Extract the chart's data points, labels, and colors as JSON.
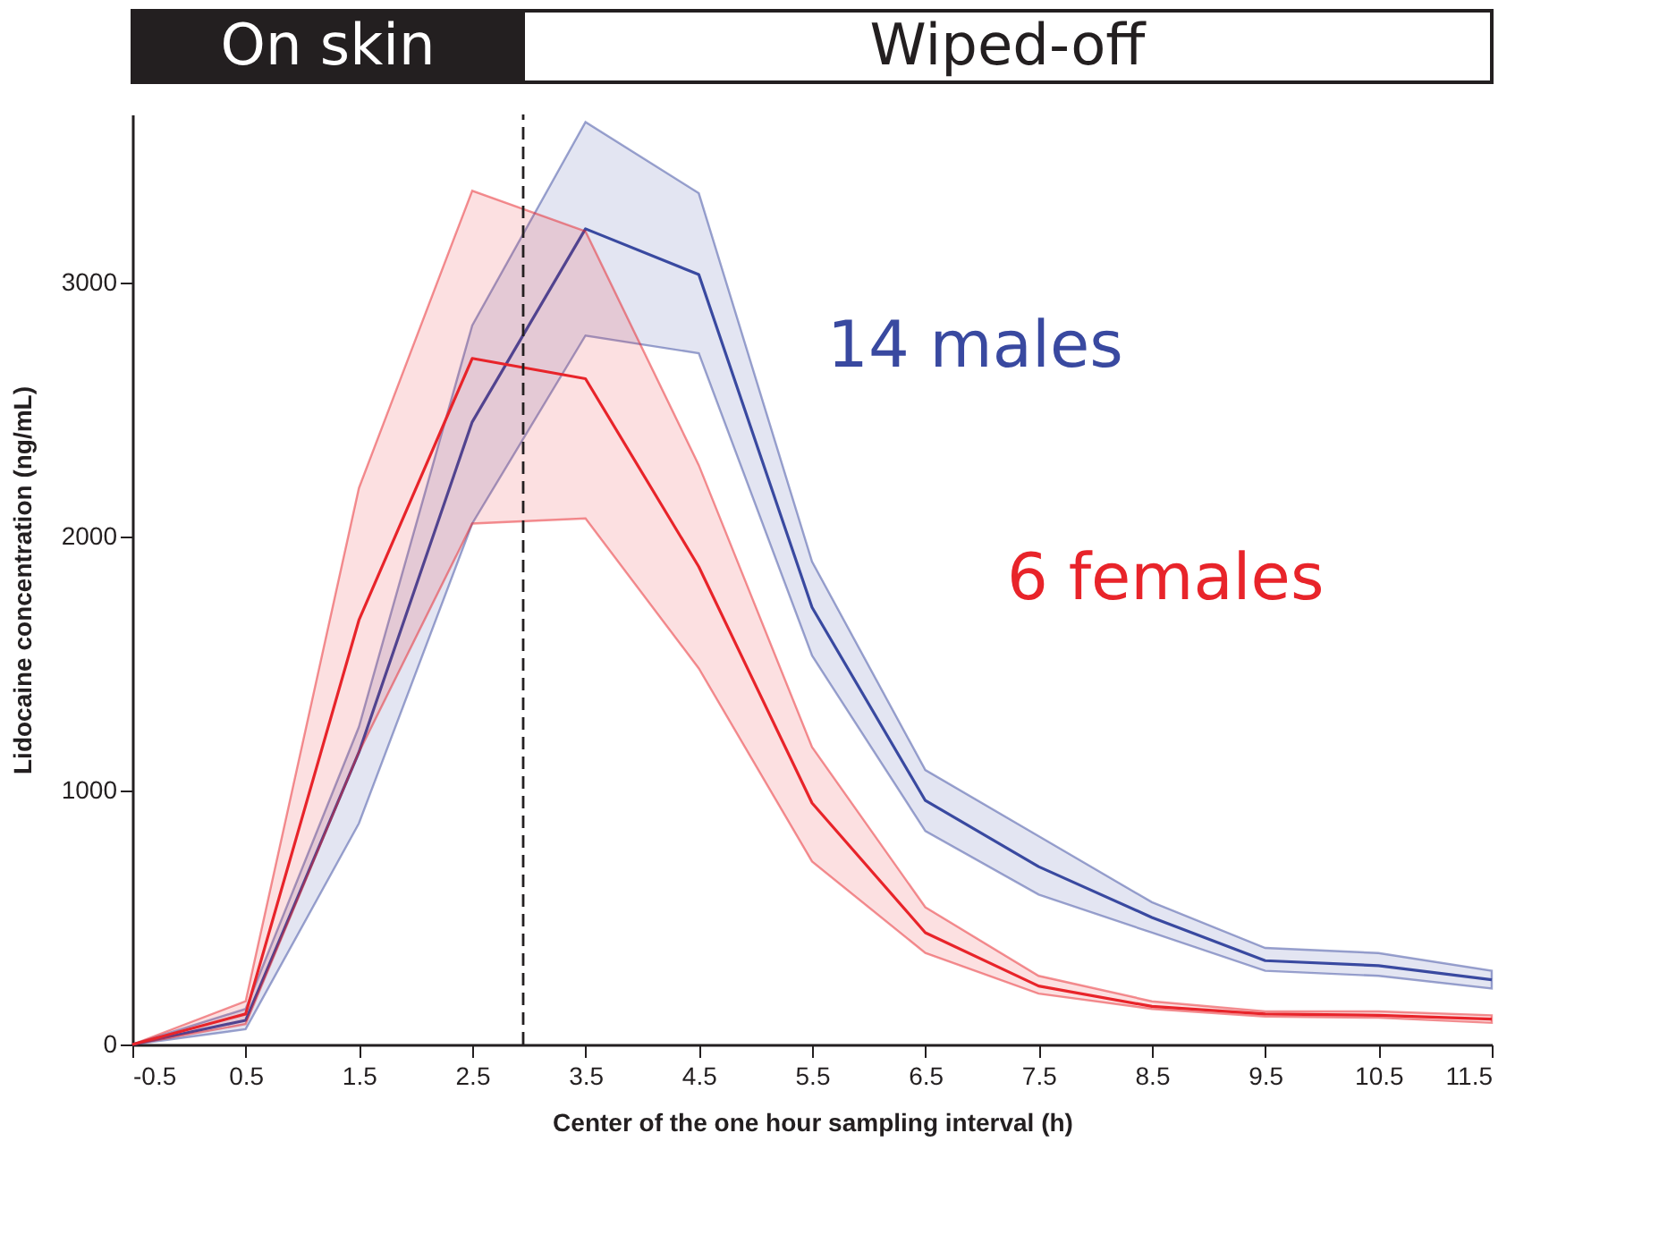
{
  "chart_data": {
    "type": "line",
    "xlabel": "Center of the one hour sampling interval (h)",
    "ylabel": "Lidocaine concentration (ng/mL)",
    "annotations": [
      "On skin",
      "Wiped-off"
    ],
    "x": [
      -0.5,
      0.5,
      1.5,
      2.5,
      3.5,
      4.5,
      5.5,
      6.5,
      7.5,
      8.5,
      9.5,
      10.5,
      11.5
    ],
    "series": [
      {
        "name": "14 males",
        "color": "#3949a0",
        "values": [
          0,
          95,
          1150,
          2450,
          3210,
          3030,
          1720,
          960,
          700,
          500,
          330,
          310,
          255
        ],
        "lower": [
          0,
          60,
          870,
          2050,
          2790,
          2720,
          1530,
          840,
          590,
          440,
          290,
          270,
          220
        ],
        "upper": [
          0,
          140,
          1250,
          2830,
          3630,
          3350,
          1900,
          1080,
          820,
          560,
          380,
          360,
          290
        ]
      },
      {
        "name": "6 females",
        "color": "#e8242a",
        "values": [
          0,
          120,
          1670,
          2700,
          2620,
          1880,
          950,
          440,
          230,
          150,
          120,
          115,
          100
        ],
        "lower": [
          0,
          80,
          1150,
          2050,
          2070,
          1480,
          720,
          360,
          200,
          140,
          110,
          105,
          85
        ],
        "upper": [
          0,
          170,
          2190,
          3360,
          3200,
          2280,
          1170,
          540,
          270,
          170,
          130,
          130,
          115
        ]
      }
    ],
    "xlim": [
      -0.5,
      11.5
    ],
    "xticks": [
      {
        "value": -0.5,
        "label": "-0.5"
      },
      0.5,
      1.5,
      2.5,
      3.5,
      4.5,
      5.5,
      6.5,
      7.5,
      8.5,
      9.5,
      10.5,
      11.5
    ],
    "ylim": [
      0,
      3660
    ],
    "yticks": [
      0,
      1000,
      2000,
      3000
    ],
    "ref_lines": [
      {
        "axis": "x",
        "value": 2.95,
        "line_style": "dashed",
        "color": "#231f20"
      }
    ],
    "grid": false,
    "legend": false,
    "marker": "none",
    "line_style": "solid"
  }
}
